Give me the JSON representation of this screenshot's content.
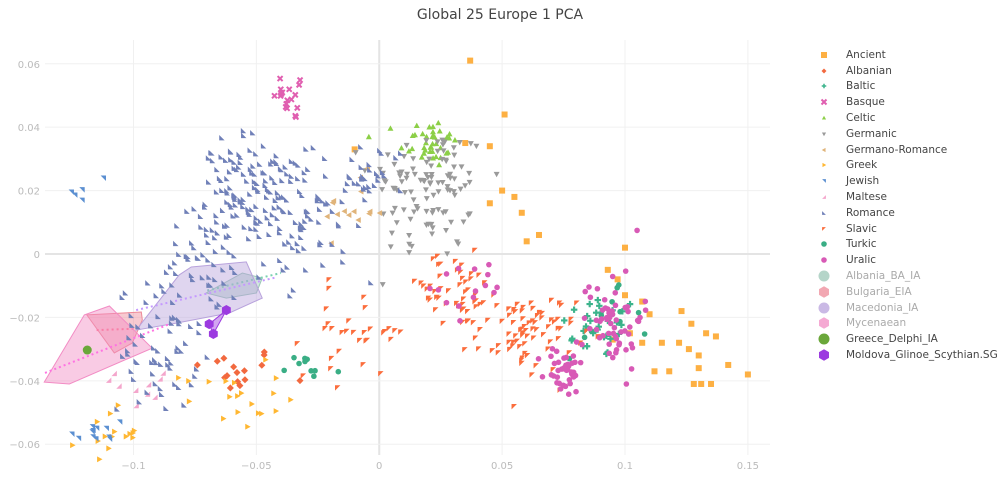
{
  "chart_data": {
    "type": "scatter",
    "title": "Global 25 Europe 1 PCA",
    "xlabel": "",
    "ylabel": "",
    "xlim": [
      -0.136,
      0.159
    ],
    "ylim": [
      -0.0634,
      0.0675
    ],
    "xticks": [
      -0.1,
      -0.05,
      0,
      0.05,
      0.1,
      0.15
    ],
    "xtick_labels": [
      "−0.1",
      "−0.05",
      "0",
      "0.05",
      "0.1",
      "0.15"
    ],
    "yticks": [
      0.06,
      0.04,
      0.02,
      0,
      -0.02,
      -0.04,
      -0.06
    ],
    "ytick_labels": [
      "0.06",
      "0.04",
      "0.02",
      "0",
      "−0.02",
      "−0.04",
      "−0.06"
    ],
    "grid": true,
    "legend_position": "right",
    "series": [
      {
        "name": "Ancient",
        "color": "#fdb043",
        "marker": "square",
        "points": [
          [
            0.037,
            0.061
          ],
          [
            0.051,
            0.044
          ],
          [
            0.045,
            0.034
          ],
          [
            0.035,
            0.035
          ],
          [
            0.05,
            0.02
          ],
          [
            0.055,
            0.018
          ],
          [
            0.058,
            0.013
          ],
          [
            0.045,
            0.016
          ],
          [
            -0.01,
            0.033
          ],
          [
            0.065,
            0.006
          ],
          [
            0.06,
            0.004
          ],
          [
            0.1,
            0.002
          ],
          [
            0.093,
            -0.005
          ],
          [
            0.097,
            -0.008
          ],
          [
            0.1,
            -0.013
          ],
          [
            0.107,
            -0.015
          ],
          [
            0.11,
            -0.019
          ],
          [
            0.102,
            -0.025
          ],
          [
            0.095,
            -0.027
          ],
          [
            0.107,
            -0.028
          ],
          [
            0.115,
            -0.028
          ],
          [
            0.123,
            -0.018
          ],
          [
            0.127,
            -0.022
          ],
          [
            0.122,
            -0.028
          ],
          [
            0.126,
            -0.03
          ],
          [
            0.13,
            -0.032
          ],
          [
            0.137,
            -0.026
          ],
          [
            0.133,
            -0.025
          ],
          [
            0.118,
            -0.037
          ],
          [
            0.13,
            -0.036
          ],
          [
            0.135,
            -0.041
          ],
          [
            0.131,
            -0.041
          ],
          [
            0.142,
            -0.035
          ],
          [
            0.15,
            -0.038
          ],
          [
            0.112,
            -0.037
          ],
          [
            0.128,
            -0.041
          ]
        ]
      },
      {
        "name": "Albanian",
        "color": "#f2693f",
        "marker": "diamond",
        "clusters": [
          {
            "x": -0.06,
            "y": -0.037,
            "sx": 0.01,
            "sy": 0.004,
            "n": 16
          }
        ]
      },
      {
        "name": "Baltic",
        "color": "#3cb48c",
        "marker": "cross",
        "clusters": [
          {
            "x": 0.09,
            "y": -0.023,
            "sx": 0.008,
            "sy": 0.005,
            "n": 30
          }
        ]
      },
      {
        "name": "Basque",
        "color": "#e05fb0",
        "marker": "x",
        "clusters": [
          {
            "x": -0.035,
            "y": 0.05,
            "sx": 0.004,
            "sy": 0.004,
            "n": 18
          }
        ]
      },
      {
        "name": "Celtic",
        "color": "#8ccf47",
        "marker": "triangle-up",
        "clusters": [
          {
            "x": 0.02,
            "y": 0.035,
            "sx": 0.006,
            "sy": 0.004,
            "n": 40
          }
        ]
      },
      {
        "name": "Germanic",
        "color": "#9a9a9a",
        "marker": "triangle-down",
        "clusters": [
          {
            "x": 0.02,
            "y": 0.024,
            "sx": 0.012,
            "sy": 0.008,
            "n": 90
          },
          {
            "x": 0.02,
            "y": 0.005,
            "sx": 0.01,
            "sy": 0.006,
            "n": 20
          }
        ]
      },
      {
        "name": "Germano-Romance",
        "color": "#e0b47a",
        "marker": "triangle-left",
        "clusters": [
          {
            "x": -0.01,
            "y": 0.015,
            "sx": 0.006,
            "sy": 0.005,
            "n": 15
          }
        ]
      },
      {
        "name": "Greek",
        "color": "#ffb732",
        "marker": "triangle-right",
        "clusters": [
          {
            "x": -0.11,
            "y": -0.057,
            "sx": 0.006,
            "sy": 0.004,
            "n": 15
          },
          {
            "x": -0.06,
            "y": -0.045,
            "sx": 0.01,
            "sy": 0.005,
            "n": 20
          }
        ]
      },
      {
        "name": "Jewish",
        "color": "#5b8fd1",
        "marker": "triangle-sw",
        "clusters": [
          {
            "x": -0.115,
            "y": -0.057,
            "sx": 0.006,
            "sy": 0.004,
            "n": 12
          },
          {
            "x": -0.115,
            "y": 0.02,
            "sx": 0.005,
            "sy": 0.004,
            "n": 5
          }
        ]
      },
      {
        "name": "Maltese",
        "color": "#f4a6cc",
        "marker": "triangle-ne",
        "clusters": [
          {
            "x": -0.095,
            "y": -0.04,
            "sx": 0.006,
            "sy": 0.005,
            "n": 10
          }
        ]
      },
      {
        "name": "Romance",
        "color": "#7080b8",
        "marker": "triangle-se",
        "clusters": [
          {
            "x": -0.05,
            "y": 0.018,
            "sx": 0.012,
            "sy": 0.008,
            "n": 120
          },
          {
            "x": -0.025,
            "y": 0.012,
            "sx": 0.012,
            "sy": 0.01,
            "n": 60
          },
          {
            "x": -0.07,
            "y": -0.005,
            "sx": 0.012,
            "sy": 0.01,
            "n": 50
          },
          {
            "x": -0.09,
            "y": -0.03,
            "sx": 0.008,
            "sy": 0.01,
            "n": 60
          },
          {
            "x": -0.06,
            "y": 0.03,
            "sx": 0.006,
            "sy": 0.006,
            "n": 20
          },
          {
            "x": 0.0,
            "y": 0.025,
            "sx": 0.006,
            "sy": 0.005,
            "n": 20
          }
        ]
      },
      {
        "name": "Slavic",
        "color": "#fb6d3c",
        "marker": "triangle-nw",
        "clusters": [
          {
            "x": 0.06,
            "y": -0.025,
            "sx": 0.01,
            "sy": 0.006,
            "n": 80
          },
          {
            "x": 0.03,
            "y": -0.012,
            "sx": 0.012,
            "sy": 0.006,
            "n": 50
          },
          {
            "x": -0.01,
            "y": -0.025,
            "sx": 0.01,
            "sy": 0.007,
            "n": 30
          }
        ]
      },
      {
        "name": "Turkic",
        "color": "#3aae85",
        "marker": "circle-small",
        "clusters": [
          {
            "x": 0.09,
            "y": -0.022,
            "sx": 0.008,
            "sy": 0.005,
            "n": 12
          },
          {
            "x": -0.03,
            "y": -0.037,
            "sx": 0.006,
            "sy": 0.003,
            "n": 10
          }
        ]
      },
      {
        "name": "Uralic",
        "color": "#d85ab6",
        "marker": "circle-small",
        "clusters": [
          {
            "x": 0.075,
            "y": -0.037,
            "sx": 0.004,
            "sy": 0.004,
            "n": 40
          },
          {
            "x": 0.095,
            "y": -0.02,
            "sx": 0.006,
            "sy": 0.008,
            "n": 60
          },
          {
            "x": 0.04,
            "y": -0.01,
            "sx": 0.01,
            "sy": 0.005,
            "n": 15
          }
        ]
      }
    ],
    "groups": [
      {
        "name": "Albania_BA_IA",
        "color": "#9cc7b7",
        "marker": "circle",
        "dim": true,
        "hull": [
          [
            -0.0704,
            -0.0123
          ],
          [
            -0.0557,
            -0.006
          ],
          [
            -0.0476,
            -0.0076
          ],
          [
            -0.05,
            -0.0123
          ],
          [
            -0.0622,
            -0.0139
          ]
        ],
        "mean_line": [
          [
            -0.07,
            -0.0115
          ],
          [
            -0.04,
            -0.006
          ]
        ]
      },
      {
        "name": "Bulgaria_EIA",
        "color": "#ee8a98",
        "marker": "hexagon",
        "dim": true,
        "hull": [
          [
            -0.119,
            -0.0192
          ],
          [
            -0.0968,
            -0.0183
          ],
          [
            -0.0964,
            -0.0208
          ],
          [
            -0.1005,
            -0.0281
          ],
          [
            -0.1078,
            -0.0312
          ]
        ],
        "mean_line": [
          [
            -0.115,
            -0.024
          ],
          [
            -0.097,
            -0.0235
          ]
        ]
      },
      {
        "name": "Macedonia_IA",
        "color": "#b8a2dc",
        "marker": "circle",
        "dim": true,
        "hull": [
          [
            -0.0989,
            -0.024
          ],
          [
            -0.0814,
            -0.0066
          ],
          [
            -0.0765,
            -0.0041
          ],
          [
            -0.0541,
            -0.0025
          ],
          [
            -0.0476,
            -0.0139
          ],
          [
            -0.061,
            -0.0186
          ],
          [
            -0.0826,
            -0.0218
          ]
        ],
        "mean_line": [
          [
            -0.0989,
            -0.0177
          ],
          [
            -0.0415,
            -0.0073
          ]
        ]
      },
      {
        "name": "Mycenaean",
        "color": "#f28cc4",
        "marker": "hexagon",
        "dim": true,
        "hull": [
          [
            -0.1363,
            -0.0404
          ],
          [
            -0.1261,
            -0.041
          ],
          [
            -0.0924,
            -0.0297
          ],
          [
            -0.1098,
            -0.0164
          ],
          [
            -0.12,
            -0.0192
          ]
        ],
        "mean_line": [
          [
            -0.136,
            -0.0375
          ],
          [
            -0.085,
            -0.022
          ]
        ]
      },
      {
        "name": "Greece_Delphi_IA",
        "color": "#6aa73a",
        "marker": "circle",
        "dim": false,
        "points": [
          [
            -0.1188,
            -0.0303
          ]
        ]
      },
      {
        "name": "Moldova_Glinoe_Scythian.SG",
        "color": "#9c3ae0",
        "marker": "hexagon",
        "dim": false,
        "points": [
          [
            -0.0622,
            -0.0177
          ],
          [
            -0.0692,
            -0.0221
          ],
          [
            -0.0675,
            -0.0252
          ]
        ],
        "hull": [
          [
            -0.0622,
            -0.0177
          ],
          [
            -0.0692,
            -0.0221
          ],
          [
            -0.0675,
            -0.0252
          ]
        ]
      }
    ]
  }
}
